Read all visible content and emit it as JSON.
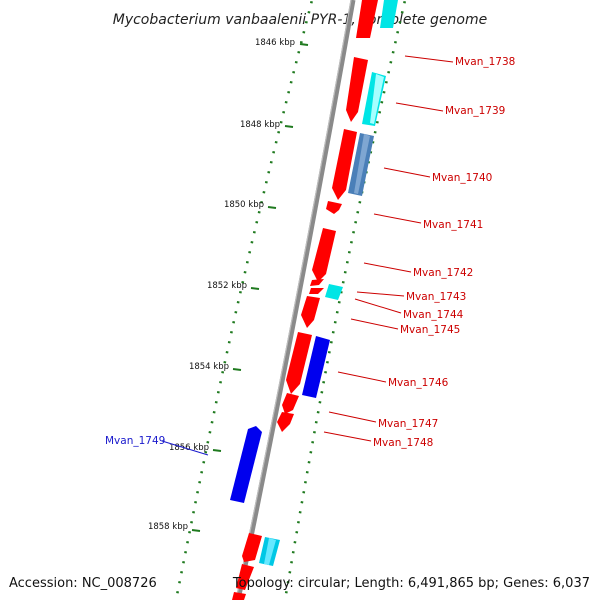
{
  "title": "Mycobacterium vanbaalenii PYR-1, complete genome",
  "footer": {
    "accession": "Accession: NC_008726",
    "info": "Topology: circular; Length: 6,491,865 bp; Genes: 6,037"
  },
  "axis": {
    "ticks": [
      {
        "label": "1846 kbp",
        "kbp": 1846
      },
      {
        "label": "1848 kbp",
        "kbp": 1848
      },
      {
        "label": "1850 kbp",
        "kbp": 1850
      },
      {
        "label": "1852 kbp",
        "kbp": 1852
      },
      {
        "label": "1854 kbp",
        "kbp": 1854
      },
      {
        "label": "1856 kbp",
        "kbp": 1856
      },
      {
        "label": "1858 kbp",
        "kbp": 1858
      }
    ]
  },
  "colors": {
    "backbone": "#8a8a8a",
    "tick": "#1f7a1f",
    "gene_forward_label": "#cc0000",
    "gene_reverse_label": "#1a1acc",
    "cds_red": "#ff0000",
    "cds_cyan": "#00e5e5",
    "cds_steel": "#4a7fb8",
    "cds_blue": "#0000ee"
  },
  "gene_labels": [
    {
      "name": "Mvan_1738",
      "color": "#cc0000"
    },
    {
      "name": "Mvan_1739",
      "color": "#cc0000"
    },
    {
      "name": "Mvan_1740",
      "color": "#cc0000"
    },
    {
      "name": "Mvan_1741",
      "color": "#cc0000"
    },
    {
      "name": "Mvan_1742",
      "color": "#cc0000"
    },
    {
      "name": "Mvan_1743",
      "color": "#cc0000"
    },
    {
      "name": "Mvan_1744",
      "color": "#cc0000"
    },
    {
      "name": "Mvan_1745",
      "color": "#cc0000"
    },
    {
      "name": "Mvan_1746",
      "color": "#cc0000"
    },
    {
      "name": "Mvan_1747",
      "color": "#cc0000"
    },
    {
      "name": "Mvan_1748",
      "color": "#cc0000"
    },
    {
      "name": "Mvan_1749",
      "color": "#1a1acc"
    }
  ]
}
